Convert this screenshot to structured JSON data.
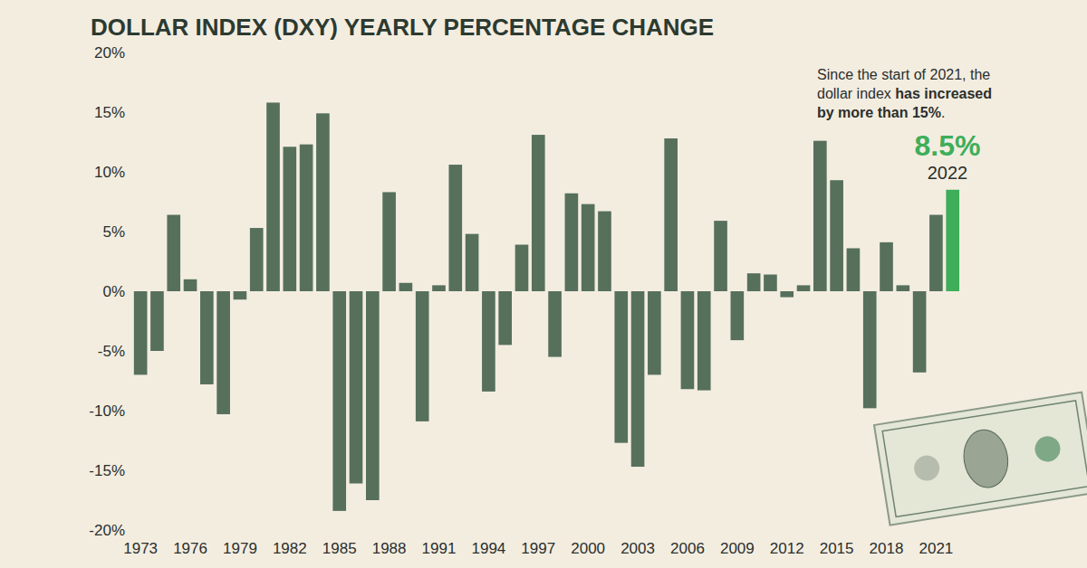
{
  "chart_data": {
    "type": "bar",
    "title": "DOLLAR INDEX (DXY) YEARLY PERCENTAGE CHANGE",
    "categories": [
      "1973",
      null,
      null,
      "1976",
      null,
      null,
      "1979",
      null,
      null,
      "1982",
      null,
      null,
      "1985",
      null,
      null,
      "1988",
      null,
      null,
      "1991",
      null,
      null,
      "1994",
      null,
      null,
      "1997",
      null,
      null,
      "2000",
      null,
      null,
      "2003",
      null,
      null,
      "2006",
      null,
      null,
      "2009",
      null,
      null,
      "2012",
      null,
      null,
      "2015",
      null,
      null,
      "2018",
      null,
      null,
      "2021",
      null
    ],
    "values": [
      -7.0,
      -5.0,
      6.4,
      1.0,
      -7.8,
      -10.3,
      -0.7,
      5.3,
      15.8,
      12.1,
      12.3,
      14.9,
      -18.4,
      -16.1,
      -17.5,
      8.3,
      0.7,
      -10.9,
      0.5,
      10.6,
      4.8,
      -8.4,
      -4.5,
      3.9,
      13.1,
      -5.5,
      8.2,
      7.3,
      6.7,
      -12.7,
      -14.7,
      -7.0,
      12.8,
      -8.2,
      -8.3,
      5.9,
      -4.1,
      1.5,
      1.4,
      -0.5,
      0.5,
      12.6,
      9.3,
      3.6,
      -9.8,
      4.1,
      0.5,
      -6.8,
      6.4,
      8.5
    ],
    "colors": [
      "#56705c",
      "#56705c",
      "#56705c",
      "#56705c",
      "#56705c",
      "#56705c",
      "#56705c",
      "#56705c",
      "#56705c",
      "#56705c",
      "#56705c",
      "#56705c",
      "#56705c",
      "#56705c",
      "#56705c",
      "#56705c",
      "#56705c",
      "#56705c",
      "#56705c",
      "#56705c",
      "#56705c",
      "#56705c",
      "#56705c",
      "#56705c",
      "#56705c",
      "#56705c",
      "#56705c",
      "#56705c",
      "#56705c",
      "#56705c",
      "#56705c",
      "#56705c",
      "#56705c",
      "#56705c",
      "#56705c",
      "#56705c",
      "#56705c",
      "#56705c",
      "#56705c",
      "#56705c",
      "#56705c",
      "#56705c",
      "#56705c",
      "#56705c",
      "#56705c",
      "#56705c",
      "#56705c",
      "#56705c",
      "#56705c",
      "#3fae5a"
    ],
    "ylim": [
      -20,
      20
    ],
    "yticks": [
      {
        "value": -20,
        "label": "-20%"
      },
      {
        "value": -15,
        "label": "-15%"
      },
      {
        "value": -10,
        "label": "-10%"
      },
      {
        "value": -5,
        "label": "-5%"
      },
      {
        "value": 0,
        "label": "0%"
      },
      {
        "value": 5,
        "label": "5%"
      },
      {
        "value": 10,
        "label": "10%"
      },
      {
        "value": 15,
        "label": "15%"
      },
      {
        "value": 20,
        "label": "20%"
      }
    ],
    "grid": false,
    "annotations": [
      {
        "text": "Since the start of 2021, the dollar index has increased by more than 15%.",
        "emphasis": "has increased by more than 15%"
      },
      {
        "label": "8.5%",
        "sublabel": "2022"
      }
    ]
  }
}
